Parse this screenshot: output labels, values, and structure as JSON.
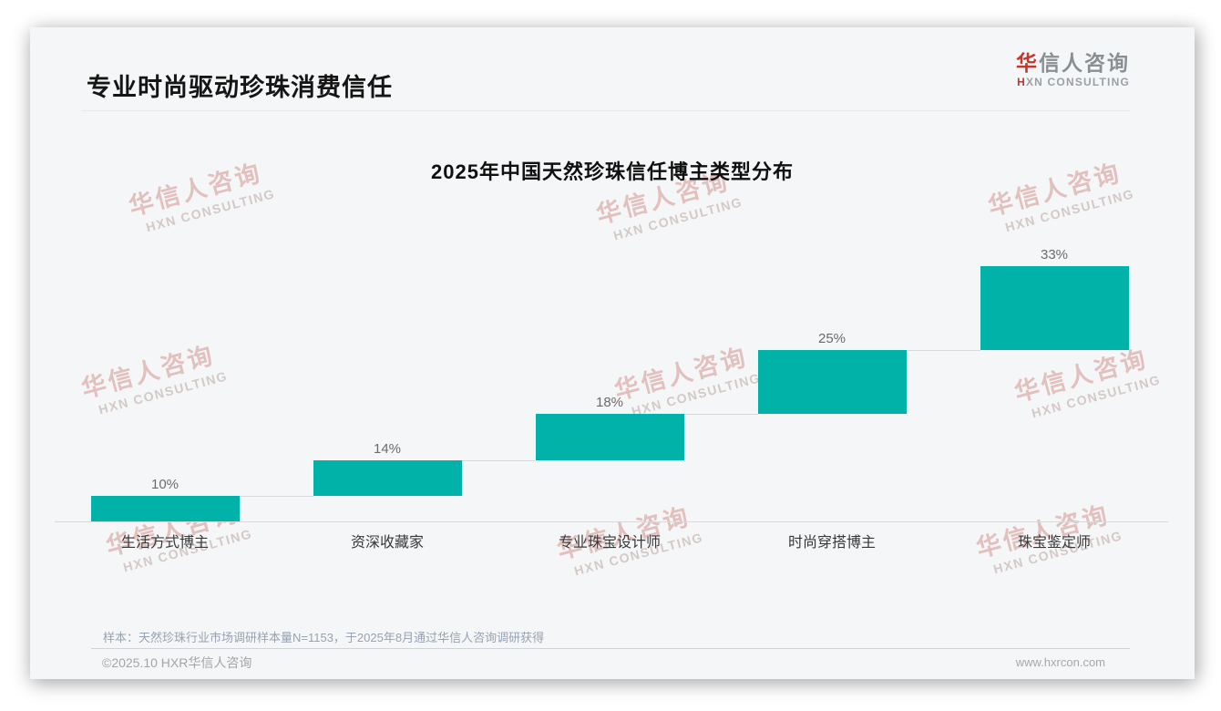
{
  "page": {
    "heading": "专业时尚驱动珍珠消费信任",
    "logo": {
      "zh_red": "华",
      "zh_gray": "信人咨询",
      "en_initial": "H",
      "en_rest": "XN CONSULTING"
    },
    "watermark": {
      "zh": "华信人咨询",
      "en": "HXN CONSULTING"
    },
    "footer": {
      "sample_note": "样本：天然珍珠行业市场调研样本量N=1153，于2025年8月通过华信人咨询调研获得",
      "copyright": "©2025.10 HXR华信人咨询",
      "website": "www.hxrcon.com"
    }
  },
  "chart_data": {
    "type": "bar",
    "subtype": "waterfall-staircase",
    "title": "2025年中国天然珍珠信任博主类型分布",
    "categories": [
      "生活方式博主",
      "资深收藏家",
      "专业珠宝设计师",
      "时尚穿搭博主",
      "珠宝鉴定师"
    ],
    "values": [
      10,
      14,
      18,
      25,
      33
    ],
    "labels": [
      "10%",
      "14%",
      "18%",
      "25%",
      "33%"
    ],
    "unit": "%",
    "total": 100,
    "ylim": [
      0,
      100
    ],
    "bar_color": "#00b2a8",
    "axis_line_color": "#d9d9d9",
    "grid": false,
    "legend": false,
    "xlabel": "",
    "ylabel": ""
  }
}
